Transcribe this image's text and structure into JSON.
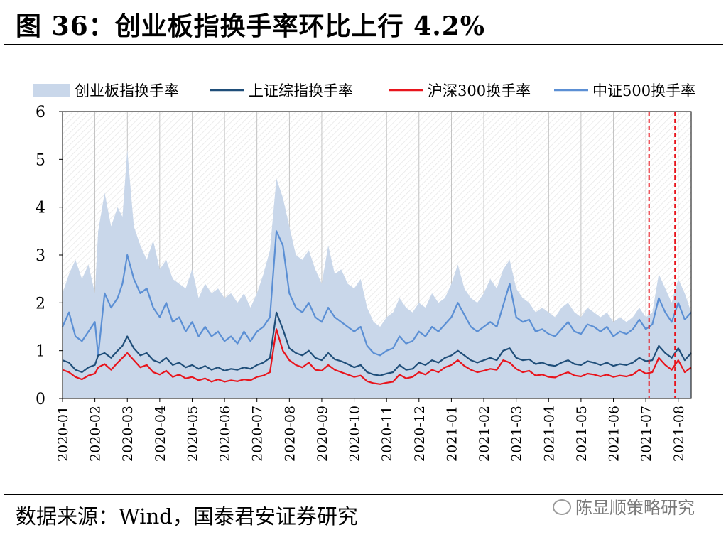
{
  "header": {
    "title": "图 36：创业板指换手率环比上行 4.2%"
  },
  "footer": {
    "source": "数据来源：Wind，国泰君安证券研究",
    "watermark": "陈显顺策略研究"
  },
  "chart_data": {
    "type": "area",
    "title": "",
    "xlabel": "",
    "ylabel": "",
    "ylim": [
      0,
      6
    ],
    "yticks": [
      "0",
      "1",
      "2",
      "3",
      "4",
      "5",
      "6"
    ],
    "categories": [
      "2020-01",
      "2020-02",
      "2020-03",
      "2020-04",
      "2020-05",
      "2020-06",
      "2020-07",
      "2020-08",
      "2020-09",
      "2020-10",
      "2020-11",
      "2020-12",
      "2021-01",
      "2021-02",
      "2021-03",
      "2021-04",
      "2021-05",
      "2021-06",
      "2021-07",
      "2021-08"
    ],
    "legend_position": "top",
    "grid": true,
    "colors": {
      "area": "#c9d7ea",
      "sh": "#1f4e79",
      "hs300": "#e8141c",
      "csi500": "#5b8fd4",
      "markers": "#e8141c",
      "grid": "#b5b5b5"
    },
    "marker_lines_x": [
      18.1,
      18.9
    ],
    "series": [
      {
        "name": "创业板指换手率",
        "kind": "area",
        "x": [
          0,
          0.2,
          0.4,
          0.6,
          0.8,
          1.0,
          1.1,
          1.3,
          1.5,
          1.7,
          1.85,
          2.0,
          2.2,
          2.4,
          2.6,
          2.8,
          3.0,
          3.2,
          3.4,
          3.6,
          3.8,
          4.0,
          4.2,
          4.4,
          4.6,
          4.8,
          5.0,
          5.2,
          5.4,
          5.6,
          5.8,
          6.0,
          6.2,
          6.4,
          6.6,
          6.8,
          7.0,
          7.2,
          7.4,
          7.6,
          7.8,
          8.0,
          8.2,
          8.4,
          8.6,
          8.8,
          9.0,
          9.2,
          9.4,
          9.6,
          9.8,
          10.0,
          10.2,
          10.4,
          10.6,
          10.8,
          11.0,
          11.2,
          11.4,
          11.6,
          11.8,
          12.0,
          12.2,
          12.4,
          12.6,
          12.8,
          13.0,
          13.2,
          13.4,
          13.6,
          13.8,
          14.0,
          14.2,
          14.4,
          14.6,
          14.8,
          15.0,
          15.2,
          15.4,
          15.6,
          15.8,
          16.0,
          16.2,
          16.4,
          16.6,
          16.8,
          17.0,
          17.2,
          17.4,
          17.6,
          17.8,
          18.0,
          18.2,
          18.4,
          18.6,
          18.8,
          19.0,
          19.2,
          19.4
        ],
        "values": [
          2.2,
          2.6,
          2.9,
          2.5,
          2.8,
          2.2,
          3.5,
          4.3,
          3.6,
          4.0,
          3.8,
          5.2,
          3.6,
          3.2,
          2.9,
          3.3,
          2.7,
          2.9,
          2.5,
          2.4,
          2.3,
          2.7,
          2.1,
          2.4,
          2.2,
          2.3,
          2.1,
          2.2,
          2.0,
          2.2,
          1.9,
          2.2,
          2.6,
          3.1,
          4.6,
          4.2,
          3.6,
          3.0,
          2.9,
          3.1,
          2.7,
          2.4,
          3.2,
          2.6,
          2.7,
          2.4,
          2.3,
          2.5,
          1.9,
          1.6,
          1.5,
          1.7,
          1.8,
          2.1,
          1.9,
          1.8,
          2.0,
          1.9,
          2.2,
          2.0,
          2.1,
          2.4,
          2.8,
          2.3,
          2.1,
          2.0,
          2.2,
          2.5,
          2.3,
          2.7,
          2.9,
          2.3,
          2.1,
          2.0,
          1.8,
          1.9,
          1.8,
          1.7,
          1.9,
          2.0,
          1.8,
          1.7,
          1.9,
          1.8,
          1.7,
          1.8,
          1.6,
          1.7,
          1.6,
          1.7,
          1.9,
          1.7,
          1.8,
          2.6,
          2.3,
          2.0,
          2.5,
          2.2,
          1.8
        ]
      },
      {
        "name": "上证综指换手率",
        "kind": "line",
        "x": [
          0,
          0.2,
          0.4,
          0.6,
          0.8,
          1.0,
          1.1,
          1.3,
          1.5,
          1.7,
          1.85,
          2.0,
          2.2,
          2.4,
          2.6,
          2.8,
          3.0,
          3.2,
          3.4,
          3.6,
          3.8,
          4.0,
          4.2,
          4.4,
          4.6,
          4.8,
          5.0,
          5.2,
          5.4,
          5.6,
          5.8,
          6.0,
          6.2,
          6.4,
          6.6,
          6.8,
          7.0,
          7.2,
          7.4,
          7.6,
          7.8,
          8.0,
          8.2,
          8.4,
          8.6,
          8.8,
          9.0,
          9.2,
          9.4,
          9.6,
          9.8,
          10.0,
          10.2,
          10.4,
          10.6,
          10.8,
          11.0,
          11.2,
          11.4,
          11.6,
          11.8,
          12.0,
          12.2,
          12.4,
          12.6,
          12.8,
          13.0,
          13.2,
          13.4,
          13.6,
          13.8,
          14.0,
          14.2,
          14.4,
          14.6,
          14.8,
          15.0,
          15.2,
          15.4,
          15.6,
          15.8,
          16.0,
          16.2,
          16.4,
          16.6,
          16.8,
          17.0,
          17.2,
          17.4,
          17.6,
          17.8,
          18.0,
          18.2,
          18.4,
          18.6,
          18.8,
          19.0,
          19.2,
          19.4
        ],
        "values": [
          0.8,
          0.75,
          0.6,
          0.55,
          0.65,
          0.7,
          0.9,
          0.95,
          0.85,
          1.0,
          1.1,
          1.3,
          1.05,
          0.9,
          0.95,
          0.8,
          0.75,
          0.85,
          0.7,
          0.75,
          0.65,
          0.7,
          0.62,
          0.68,
          0.6,
          0.65,
          0.58,
          0.62,
          0.6,
          0.65,
          0.62,
          0.7,
          0.75,
          0.85,
          1.8,
          1.45,
          1.05,
          0.95,
          0.9,
          1.0,
          0.85,
          0.8,
          0.95,
          0.82,
          0.78,
          0.72,
          0.65,
          0.7,
          0.55,
          0.5,
          0.48,
          0.52,
          0.55,
          0.7,
          0.6,
          0.62,
          0.75,
          0.7,
          0.8,
          0.75,
          0.85,
          0.9,
          1.0,
          0.9,
          0.8,
          0.75,
          0.8,
          0.85,
          0.8,
          1.0,
          1.05,
          0.85,
          0.8,
          0.82,
          0.72,
          0.75,
          0.7,
          0.68,
          0.75,
          0.8,
          0.72,
          0.7,
          0.78,
          0.75,
          0.7,
          0.75,
          0.68,
          0.72,
          0.7,
          0.75,
          0.85,
          0.78,
          0.8,
          1.1,
          0.95,
          0.85,
          1.05,
          0.8,
          0.95
        ]
      },
      {
        "name": "沪深300换手率",
        "kind": "line",
        "x": [
          0,
          0.2,
          0.4,
          0.6,
          0.8,
          1.0,
          1.1,
          1.3,
          1.5,
          1.7,
          1.85,
          2.0,
          2.2,
          2.4,
          2.6,
          2.8,
          3.0,
          3.2,
          3.4,
          3.6,
          3.8,
          4.0,
          4.2,
          4.4,
          4.6,
          4.8,
          5.0,
          5.2,
          5.4,
          5.6,
          5.8,
          6.0,
          6.2,
          6.4,
          6.6,
          6.8,
          7.0,
          7.2,
          7.4,
          7.6,
          7.8,
          8.0,
          8.2,
          8.4,
          8.6,
          8.8,
          9.0,
          9.2,
          9.4,
          9.6,
          9.8,
          10.0,
          10.2,
          10.4,
          10.6,
          10.8,
          11.0,
          11.2,
          11.4,
          11.6,
          11.8,
          12.0,
          12.2,
          12.4,
          12.6,
          12.8,
          13.0,
          13.2,
          13.4,
          13.6,
          13.8,
          14.0,
          14.2,
          14.4,
          14.6,
          14.8,
          15.0,
          15.2,
          15.4,
          15.6,
          15.8,
          16.0,
          16.2,
          16.4,
          16.6,
          16.8,
          17.0,
          17.2,
          17.4,
          17.6,
          17.8,
          18.0,
          18.2,
          18.4,
          18.6,
          18.8,
          19.0,
          19.2,
          19.4
        ],
        "values": [
          0.6,
          0.55,
          0.45,
          0.4,
          0.48,
          0.52,
          0.65,
          0.72,
          0.6,
          0.75,
          0.85,
          0.95,
          0.8,
          0.65,
          0.7,
          0.55,
          0.5,
          0.58,
          0.45,
          0.5,
          0.42,
          0.45,
          0.38,
          0.42,
          0.35,
          0.4,
          0.35,
          0.38,
          0.36,
          0.4,
          0.38,
          0.45,
          0.48,
          0.55,
          1.45,
          1.0,
          0.8,
          0.7,
          0.65,
          0.75,
          0.6,
          0.58,
          0.7,
          0.6,
          0.55,
          0.5,
          0.45,
          0.48,
          0.36,
          0.32,
          0.3,
          0.33,
          0.35,
          0.5,
          0.42,
          0.45,
          0.55,
          0.5,
          0.6,
          0.55,
          0.65,
          0.7,
          0.8,
          0.68,
          0.6,
          0.55,
          0.58,
          0.62,
          0.6,
          0.8,
          0.75,
          0.62,
          0.55,
          0.58,
          0.48,
          0.5,
          0.45,
          0.44,
          0.5,
          0.55,
          0.48,
          0.46,
          0.52,
          0.5,
          0.46,
          0.5,
          0.45,
          0.48,
          0.46,
          0.5,
          0.6,
          0.52,
          0.55,
          0.85,
          0.7,
          0.6,
          0.8,
          0.55,
          0.65
        ]
      },
      {
        "name": "中证500换手率",
        "kind": "line",
        "x": [
          0,
          0.2,
          0.4,
          0.6,
          0.8,
          1.0,
          1.1,
          1.3,
          1.5,
          1.7,
          1.85,
          2.0,
          2.2,
          2.4,
          2.6,
          2.8,
          3.0,
          3.2,
          3.4,
          3.6,
          3.8,
          4.0,
          4.2,
          4.4,
          4.6,
          4.8,
          5.0,
          5.2,
          5.4,
          5.6,
          5.8,
          6.0,
          6.2,
          6.4,
          6.6,
          6.8,
          7.0,
          7.2,
          7.4,
          7.6,
          7.8,
          8.0,
          8.2,
          8.4,
          8.6,
          8.8,
          9.0,
          9.2,
          9.4,
          9.6,
          9.8,
          10.0,
          10.2,
          10.4,
          10.6,
          10.8,
          11.0,
          11.2,
          11.4,
          11.6,
          11.8,
          12.0,
          12.2,
          12.4,
          12.6,
          12.8,
          13.0,
          13.2,
          13.4,
          13.6,
          13.8,
          14.0,
          14.2,
          14.4,
          14.6,
          14.8,
          15.0,
          15.2,
          15.4,
          15.6,
          15.8,
          16.0,
          16.2,
          16.4,
          16.6,
          16.8,
          17.0,
          17.2,
          17.4,
          17.6,
          17.8,
          18.0,
          18.2,
          18.4,
          18.6,
          18.8,
          19.0,
          19.2,
          19.4
        ],
        "values": [
          1.5,
          1.8,
          1.3,
          1.2,
          1.4,
          1.6,
          0.9,
          2.2,
          1.9,
          2.1,
          2.4,
          3.0,
          2.5,
          2.2,
          2.3,
          1.9,
          1.7,
          2.0,
          1.6,
          1.7,
          1.4,
          1.6,
          1.3,
          1.5,
          1.3,
          1.4,
          1.2,
          1.3,
          1.15,
          1.4,
          1.2,
          1.4,
          1.5,
          1.7,
          3.5,
          3.2,
          2.2,
          1.9,
          1.8,
          2.0,
          1.7,
          1.6,
          1.9,
          1.7,
          1.6,
          1.5,
          1.4,
          1.5,
          1.1,
          0.95,
          0.9,
          1.0,
          1.05,
          1.3,
          1.15,
          1.2,
          1.4,
          1.3,
          1.5,
          1.4,
          1.55,
          1.7,
          2.0,
          1.75,
          1.5,
          1.4,
          1.5,
          1.6,
          1.5,
          1.95,
          2.4,
          1.7,
          1.6,
          1.65,
          1.4,
          1.45,
          1.35,
          1.3,
          1.45,
          1.6,
          1.4,
          1.35,
          1.55,
          1.5,
          1.4,
          1.5,
          1.3,
          1.4,
          1.35,
          1.45,
          1.65,
          1.45,
          1.55,
          2.1,
          1.8,
          1.6,
          2.0,
          1.65,
          1.8
        ]
      }
    ]
  }
}
